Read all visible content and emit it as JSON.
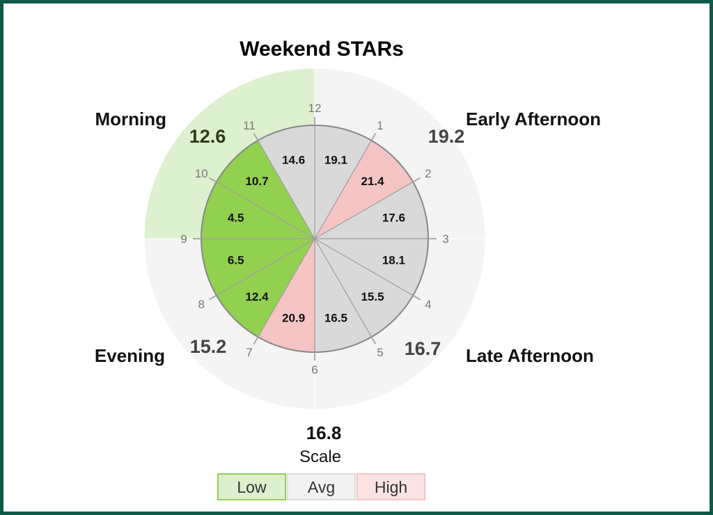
{
  "chart_data": {
    "type": "pie",
    "title": "Weekend STARs",
    "hour_labels": [
      "12",
      "1",
      "2",
      "3",
      "4",
      "5",
      "6",
      "7",
      "8",
      "9",
      "10",
      "11"
    ],
    "slices": [
      {
        "from": "12",
        "to": "1",
        "value": 19.1,
        "level": "Avg"
      },
      {
        "from": "1",
        "to": "2",
        "value": 21.4,
        "level": "High"
      },
      {
        "from": "2",
        "to": "3",
        "value": 17.6,
        "level": "Avg"
      },
      {
        "from": "3",
        "to": "4",
        "value": 18.1,
        "level": "Avg"
      },
      {
        "from": "4",
        "to": "5",
        "value": 15.5,
        "level": "Avg"
      },
      {
        "from": "5",
        "to": "6",
        "value": 16.5,
        "level": "Avg"
      },
      {
        "from": "6",
        "to": "7",
        "value": 20.9,
        "level": "High"
      },
      {
        "from": "7",
        "to": "8",
        "value": 12.4,
        "level": "Low"
      },
      {
        "from": "8",
        "to": "9",
        "value": 6.5,
        "level": "Low"
      },
      {
        "from": "9",
        "to": "10",
        "value": 4.5,
        "level": "Low"
      },
      {
        "from": "10",
        "to": "11",
        "value": 10.7,
        "level": "Low"
      },
      {
        "from": "11",
        "to": "12",
        "value": 14.6,
        "level": "Avg"
      }
    ],
    "periods": [
      {
        "name": "Early Afternoon",
        "value": "19.2",
        "level": "Avg"
      },
      {
        "name": "Late Afternoon",
        "value": "16.7",
        "level": "Avg"
      },
      {
        "name": "Evening",
        "value": "15.2",
        "level": "Avg"
      },
      {
        "name": "Morning",
        "value": "12.6",
        "level": "Low"
      }
    ],
    "overall": {
      "value": "16.8",
      "label": "Scale"
    },
    "legend": [
      {
        "label": "Low",
        "fill": "#dcf0cf",
        "border": "#8fcf55"
      },
      {
        "label": "Avg",
        "fill": "#f2f2f2",
        "border": "#dddddd"
      },
      {
        "label": "High",
        "fill": "#fbe3e3",
        "border": "#f3c4c4"
      }
    ],
    "colors": {
      "Low": "#92d050",
      "Avg": "#d9d9d9",
      "High": "#f5c4c4",
      "outerLow": "#ddf0cf",
      "outerAvg": "#f4f4f4",
      "frame": "#0f5a48"
    }
  }
}
